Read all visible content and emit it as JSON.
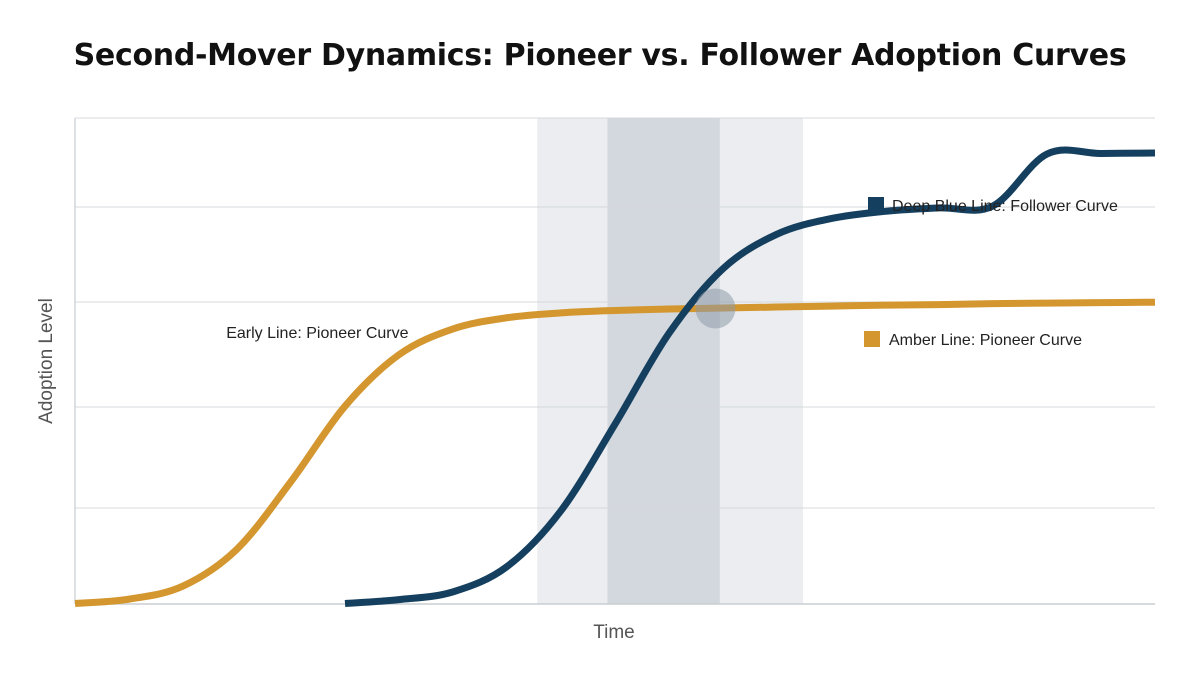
{
  "chart_data": {
    "type": "line",
    "title": "Second-Mover Dynamics: Pioneer vs. Follower Adoption Curves",
    "xlabel": "Time",
    "ylabel": "Adoption Level",
    "grid": true,
    "xlim": [
      0,
      100
    ],
    "ylim": [
      0,
      100
    ],
    "series": [
      {
        "name": "Amber Line: Pioneer Curve",
        "color": "#D4962E",
        "x": [
          0,
          5,
          10,
          15,
          20,
          25,
          30,
          35,
          40,
          45,
          50,
          55,
          60,
          65,
          70,
          75,
          80,
          85,
          90,
          95,
          100
        ],
        "y": [
          0.1,
          1.0,
          3.7,
          11.3,
          25.2,
          40.7,
          51.3,
          56.6,
          58.9,
          59.9,
          60.4,
          60.7,
          60.9,
          61.1,
          61.3,
          61.5,
          61.6,
          61.8,
          61.9,
          62.0,
          62.1
        ]
      },
      {
        "name": "Deep Blue Line: Follower Curve",
        "color": "#153F5E",
        "x": [
          25,
          30,
          35,
          40,
          45,
          50,
          55,
          60,
          65,
          70,
          75,
          80,
          85,
          90,
          95,
          100
        ],
        "y": [
          0.1,
          0.9,
          2.5,
          7.7,
          19.2,
          37.0,
          55.7,
          69.0,
          76.1,
          79.3,
          80.8,
          81.5,
          81.9,
          92.6,
          92.7,
          92.8
        ]
      }
    ],
    "annotations": [
      {
        "text": "Early Line: Pioneer Curve",
        "x": 14,
        "y": 56
      },
      {
        "text": "Amber Line: Pioneer Curve",
        "swatch": "#D4962E",
        "legend": "right"
      },
      {
        "text": "Deep Blue Line: Follower Curve",
        "swatch": "#153F5E",
        "legend": "top-right"
      }
    ],
    "highlight_bands": [
      {
        "x0": 42.8,
        "x1": 67.4,
        "color": "#EBEDF0"
      },
      {
        "x0": 49.3,
        "x1": 59.7,
        "color": "#D3D8DF"
      }
    ],
    "crossover_marker": {
      "x": 59.3,
      "y": 60.8,
      "color": "#8E9AA8"
    }
  }
}
